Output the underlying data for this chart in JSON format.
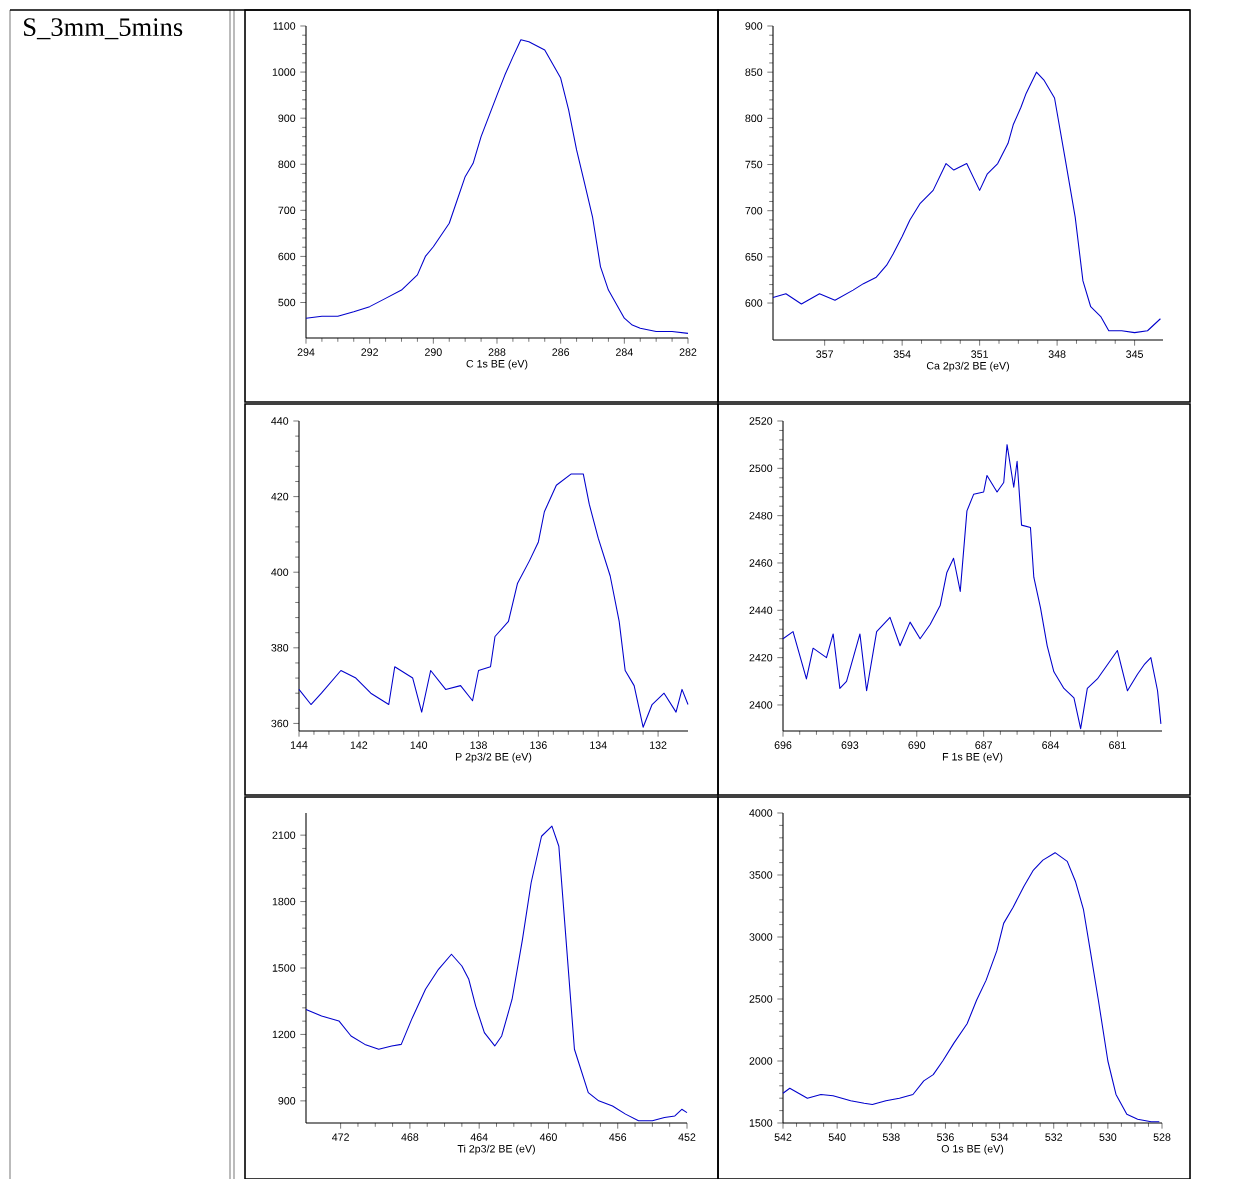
{
  "chart_data": [
    {
      "type": "line",
      "xlabel": "C 1s BE (eV)",
      "annotations": [
        "S_3mm_5mins"
      ],
      "color": "#0000cc",
      "xlim": [
        294,
        282
      ],
      "ylim": [
        423,
        1100
      ],
      "xticks": [
        294,
        292,
        290,
        288,
        286,
        284,
        282
      ],
      "yticks": [
        500,
        600,
        700,
        800,
        900,
        1000,
        1100
      ],
      "x": [
        294,
        293.5,
        293,
        292.5,
        292,
        291.5,
        291,
        290.5,
        290.25,
        290,
        289.5,
        289,
        288.75,
        288.5,
        288,
        287.75,
        287.5,
        287.25,
        287,
        286.5,
        286,
        285.75,
        285.5,
        285.25,
        285,
        284.75,
        284.5,
        284,
        283.75,
        283.5,
        283,
        282.5,
        282
      ],
      "values": [
        466,
        470,
        470,
        480,
        491,
        509,
        527,
        560,
        600,
        621,
        672,
        773,
        802,
        860,
        950,
        994,
        1033,
        1070,
        1066,
        1048,
        987,
        918,
        831,
        759,
        686,
        578,
        527,
        466,
        451,
        444,
        437,
        437,
        433
      ]
    },
    {
      "type": "line",
      "xlabel": "Ca 2p3/2 BE (eV)",
      "color": "#0000cc",
      "xlim": [
        359,
        343.9
      ],
      "ylim": [
        560,
        900
      ],
      "xticks": [
        357,
        354,
        351,
        348,
        345
      ],
      "yticks": [
        600,
        650,
        700,
        750,
        800,
        850,
        900
      ],
      "x": [
        359.0,
        358.5,
        357.9,
        357.2,
        356.6,
        355.9,
        355.5,
        355.0,
        354.6,
        354.35,
        354.0,
        353.7,
        353.3,
        352.8,
        352.3,
        352.0,
        351.5,
        351.0,
        350.7,
        350.3,
        349.9,
        349.7,
        349.4,
        349.2,
        348.8,
        348.5,
        348.1,
        347.7,
        347.3,
        347.0,
        346.7,
        346.3,
        346.0,
        345.5,
        345.0,
        344.5,
        344.0
      ],
      "values": [
        606,
        610,
        599,
        610,
        603,
        614,
        621,
        628,
        641,
        653,
        672,
        690,
        708,
        722,
        751,
        744,
        751,
        722,
        740,
        751,
        773,
        793,
        812,
        827,
        850,
        841,
        822,
        758,
        693,
        624,
        596,
        585,
        570,
        570,
        568,
        570,
        583
      ]
    },
    {
      "type": "line",
      "xlabel": "P 2p3/2 BE (eV)",
      "color": "#0000cc",
      "xlim": [
        144,
        131
      ],
      "ylim": [
        358,
        440
      ],
      "xticks": [
        144,
        142,
        140,
        138,
        136,
        134,
        132
      ],
      "yticks": [
        360,
        380,
        400,
        420,
        440
      ],
      "x": [
        144.0,
        143.6,
        143.25,
        142.6,
        142.1,
        141.6,
        141.0,
        140.8,
        140.2,
        139.9,
        139.6,
        139.1,
        138.6,
        138.2,
        138.0,
        137.6,
        137.45,
        137.0,
        136.7,
        136.3,
        136.0,
        135.8,
        135.4,
        134.9,
        134.5,
        134.3,
        134.0,
        133.6,
        133.3,
        133.1,
        132.8,
        132.5,
        132.2,
        131.8,
        131.4,
        131.2,
        131.0
      ],
      "values": [
        369,
        365,
        368,
        374,
        372,
        368,
        365,
        375,
        372,
        363,
        374,
        369,
        370,
        366,
        374,
        375,
        383,
        387,
        397,
        403,
        408,
        416,
        423,
        426,
        426,
        418,
        409,
        399,
        387,
        374,
        370,
        359,
        365,
        368,
        363,
        369,
        365
      ]
    },
    {
      "type": "line",
      "xlabel": "F 1s BE (eV)",
      "color": "#0000cc",
      "xlim": [
        696,
        679
      ],
      "ylim": [
        2389,
        2520
      ],
      "xticks": [
        696,
        693,
        690,
        687,
        684,
        681
      ],
      "yticks": [
        2400,
        2420,
        2440,
        2460,
        2480,
        2500,
        2520
      ],
      "x": [
        696.0,
        695.55,
        694.95,
        694.65,
        694.05,
        693.75,
        693.45,
        693.15,
        692.85,
        692.55,
        692.25,
        691.8,
        691.2,
        690.75,
        690.3,
        689.85,
        689.4,
        688.95,
        688.65,
        688.35,
        688.05,
        687.75,
        687.45,
        687.0,
        686.85,
        686.4,
        686.1,
        685.95,
        685.65,
        685.5,
        685.3,
        684.9,
        684.75,
        684.45,
        684.15,
        683.85,
        683.4,
        682.95,
        682.65,
        682.35,
        681.9,
        681.45,
        681.0,
        680.55,
        680.1,
        679.8,
        679.5,
        679.2,
        679.05
      ],
      "values": [
        2428,
        2431,
        2411,
        2424,
        2420,
        2430,
        2407,
        2410,
        2420,
        2430,
        2406,
        2431,
        2437,
        2425,
        2435,
        2428,
        2434,
        2442,
        2456,
        2462,
        2448,
        2482,
        2489,
        2490,
        2497,
        2490,
        2494,
        2510,
        2492,
        2503,
        2476,
        2475,
        2454,
        2441,
        2425,
        2414,
        2407,
        2403,
        2390,
        2407,
        2411,
        2417,
        2423,
        2406,
        2413,
        2417,
        2420,
        2406,
        2392
      ]
    },
    {
      "type": "line",
      "xlabel": "Ti 2p3/2 BE (eV)",
      "color": "#0000cc",
      "xlim": [
        474,
        452
      ],
      "ylim": [
        800,
        2200
      ],
      "xticks": [
        472,
        468,
        464,
        460,
        456,
        452
      ],
      "yticks": [
        900,
        1200,
        1500,
        1800,
        2100
      ],
      "x": [
        474.0,
        473.1,
        472.1,
        471.4,
        470.6,
        469.8,
        469.05,
        468.5,
        467.9,
        467.1,
        466.35,
        465.6,
        465.0,
        464.6,
        464.2,
        463.7,
        463.1,
        462.7,
        462.1,
        461.5,
        461.0,
        460.4,
        459.8,
        459.4,
        459.0,
        458.5,
        457.7,
        457.1,
        456.3,
        455.55,
        454.8,
        454.0,
        453.3,
        452.7,
        452.3,
        452.0
      ],
      "values": [
        1313,
        1283,
        1261,
        1193,
        1155,
        1133,
        1148,
        1155,
        1268,
        1404,
        1494,
        1562,
        1509,
        1449,
        1328,
        1208,
        1148,
        1193,
        1359,
        1629,
        1885,
        2095,
        2141,
        2050,
        1644,
        1133,
        937,
        900,
        877,
        840,
        810,
        810,
        825,
        832,
        862,
        847
      ]
    },
    {
      "type": "line",
      "xlabel": "O 1s BE (eV)",
      "color": "#0000cc",
      "xlim": [
        542,
        528
      ],
      "ylim": [
        1500,
        4000
      ],
      "xticks": [
        542,
        540,
        538,
        536,
        534,
        532,
        530,
        528
      ],
      "yticks": [
        1500,
        2000,
        2500,
        3000,
        3500,
        4000
      ],
      "x": [
        542.0,
        541.75,
        541.1,
        540.6,
        540.15,
        539.5,
        539.0,
        538.7,
        538.2,
        537.7,
        537.2,
        536.8,
        536.45,
        536.1,
        535.7,
        535.2,
        534.85,
        534.5,
        534.1,
        533.85,
        533.5,
        533.1,
        532.75,
        532.4,
        531.95,
        531.5,
        531.2,
        530.9,
        530.65,
        530.35,
        530.0,
        529.7,
        529.3,
        528.9,
        528.4,
        528.1
      ],
      "values": [
        1740,
        1780,
        1700,
        1730,
        1720,
        1680,
        1660,
        1650,
        1680,
        1700,
        1730,
        1840,
        1890,
        2000,
        2140,
        2300,
        2490,
        2650,
        2890,
        3110,
        3240,
        3410,
        3540,
        3620,
        3680,
        3610,
        3450,
        3220,
        2890,
        2490,
        2000,
        1730,
        1570,
        1530,
        1510,
        1510
      ]
    }
  ]
}
